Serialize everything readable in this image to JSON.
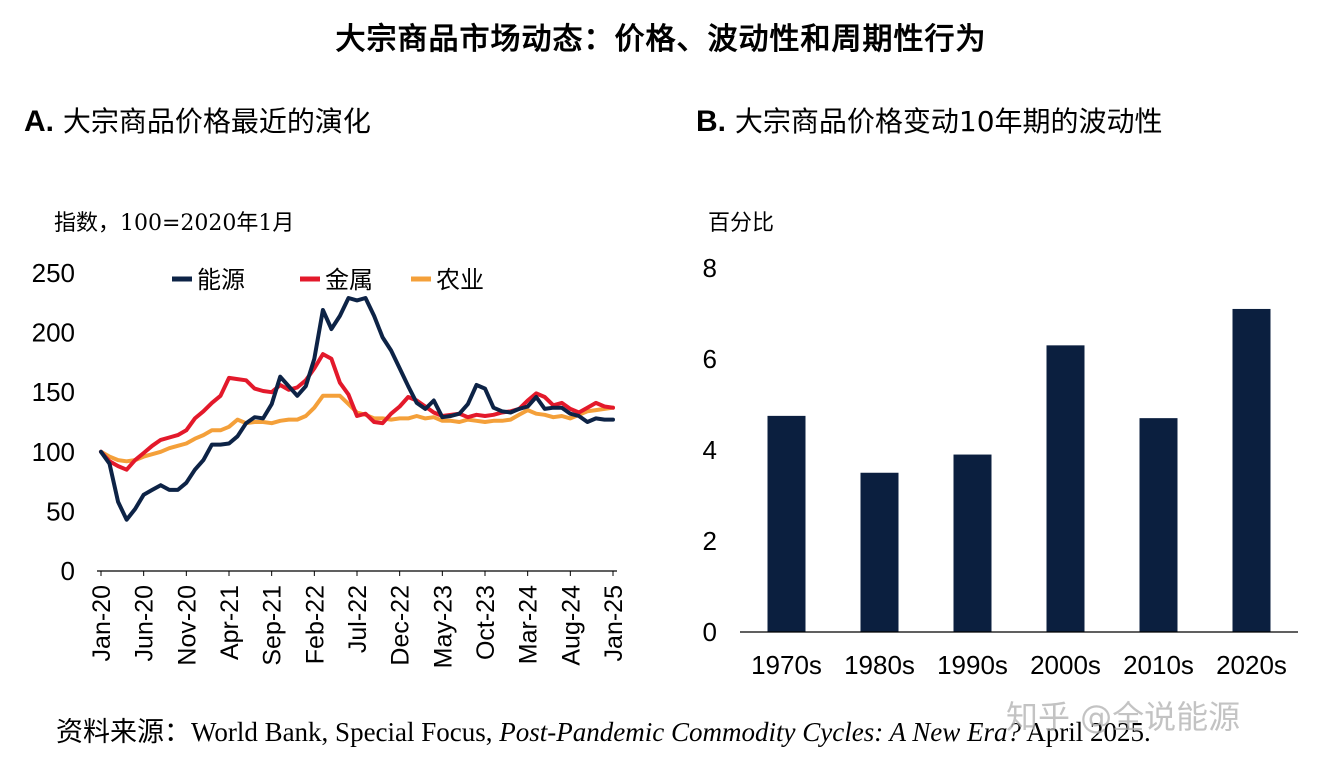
{
  "title": "大宗商品市场动态：价格、波动性和周期性行为",
  "panelA": {
    "letter": "A.",
    "title": "大宗商品价格最近的演化",
    "unit": "指数，100=2020年1月"
  },
  "panelB": {
    "letter": "B.",
    "title": "大宗商品价格变动10年期的波动性",
    "unit": "百分比"
  },
  "source": {
    "prefix": "资料来源：World Bank, Special Focus, ",
    "italic": "Post-Pandemic Commodity Cycles: A New Era?",
    "suffix": " April 2025."
  },
  "watermark": "知乎 @全说能源",
  "colors": {
    "energy": "#0d2346",
    "metals": "#e3192b",
    "agriculture": "#f4a03a",
    "bar": "#0b1f3f"
  },
  "chart_data": [
    {
      "type": "line",
      "title": "大宗商品价格最近的演化",
      "ylabel": "指数，100=2020年1月",
      "ylim": [
        0,
        250
      ],
      "yticks": [
        0,
        50,
        100,
        150,
        200,
        250
      ],
      "xticklabels": [
        "Jan-20",
        "Jun-20",
        "Nov-20",
        "Apr-21",
        "Sep-21",
        "Feb-22",
        "Jul-22",
        "Dec-22",
        "May-23",
        "Oct-23",
        "Mar-24",
        "Aug-24",
        "Jan-25"
      ],
      "x_start": "2020-01",
      "x_freq": "monthly",
      "legend": [
        "能源",
        "金属",
        "农业"
      ],
      "legend_position": "top",
      "series": [
        {
          "name": "能源",
          "values": [
            100,
            90,
            58,
            43,
            52,
            64,
            68,
            72,
            68,
            68,
            74,
            85,
            93,
            106,
            106,
            107,
            113,
            124,
            129,
            128,
            140,
            163,
            155,
            147,
            155,
            178,
            219,
            203,
            214,
            229,
            227,
            229,
            214,
            196,
            185,
            170,
            155,
            141,
            136,
            143,
            129,
            130,
            132,
            140,
            156,
            153,
            137,
            134,
            133,
            136,
            138,
            146,
            136,
            137,
            137,
            132,
            130,
            125,
            128,
            127,
            127
          ]
        },
        {
          "name": "金属",
          "values": [
            100,
            92,
            88,
            85,
            93,
            99,
            105,
            110,
            112,
            114,
            118,
            128,
            134,
            141,
            147,
            162,
            161,
            160,
            153,
            151,
            150,
            156,
            152,
            154,
            160,
            170,
            182,
            178,
            158,
            148,
            130,
            132,
            125,
            124,
            132,
            138,
            146,
            143,
            138,
            133,
            130,
            131,
            132,
            129,
            131,
            130,
            131,
            133,
            134,
            136,
            143,
            149,
            146,
            139,
            141,
            136,
            133,
            137,
            141,
            138,
            137
          ]
        },
        {
          "name": "农业",
          "values": [
            100,
            96,
            93,
            92,
            93,
            96,
            98,
            100,
            103,
            105,
            107,
            111,
            114,
            118,
            118,
            121,
            127,
            124,
            125,
            125,
            124,
            126,
            127,
            127,
            130,
            137,
            147,
            147,
            147,
            140,
            133,
            131,
            128,
            128,
            127,
            128,
            128,
            130,
            128,
            129,
            126,
            126,
            125,
            127,
            126,
            125,
            126,
            126,
            127,
            131,
            135,
            132,
            131,
            129,
            130,
            128,
            131,
            134,
            135,
            136,
            137
          ]
        }
      ]
    },
    {
      "type": "bar",
      "title": "大宗商品价格变动10年期的波动性",
      "ylabel": "百分比",
      "ylim": [
        0,
        8
      ],
      "yticks": [
        0,
        2,
        4,
        6,
        8
      ],
      "categories": [
        "1970s",
        "1980s",
        "1990s",
        "2000s",
        "2010s",
        "2020s"
      ],
      "values": [
        4.75,
        3.5,
        3.9,
        6.3,
        4.7,
        7.1
      ]
    }
  ]
}
